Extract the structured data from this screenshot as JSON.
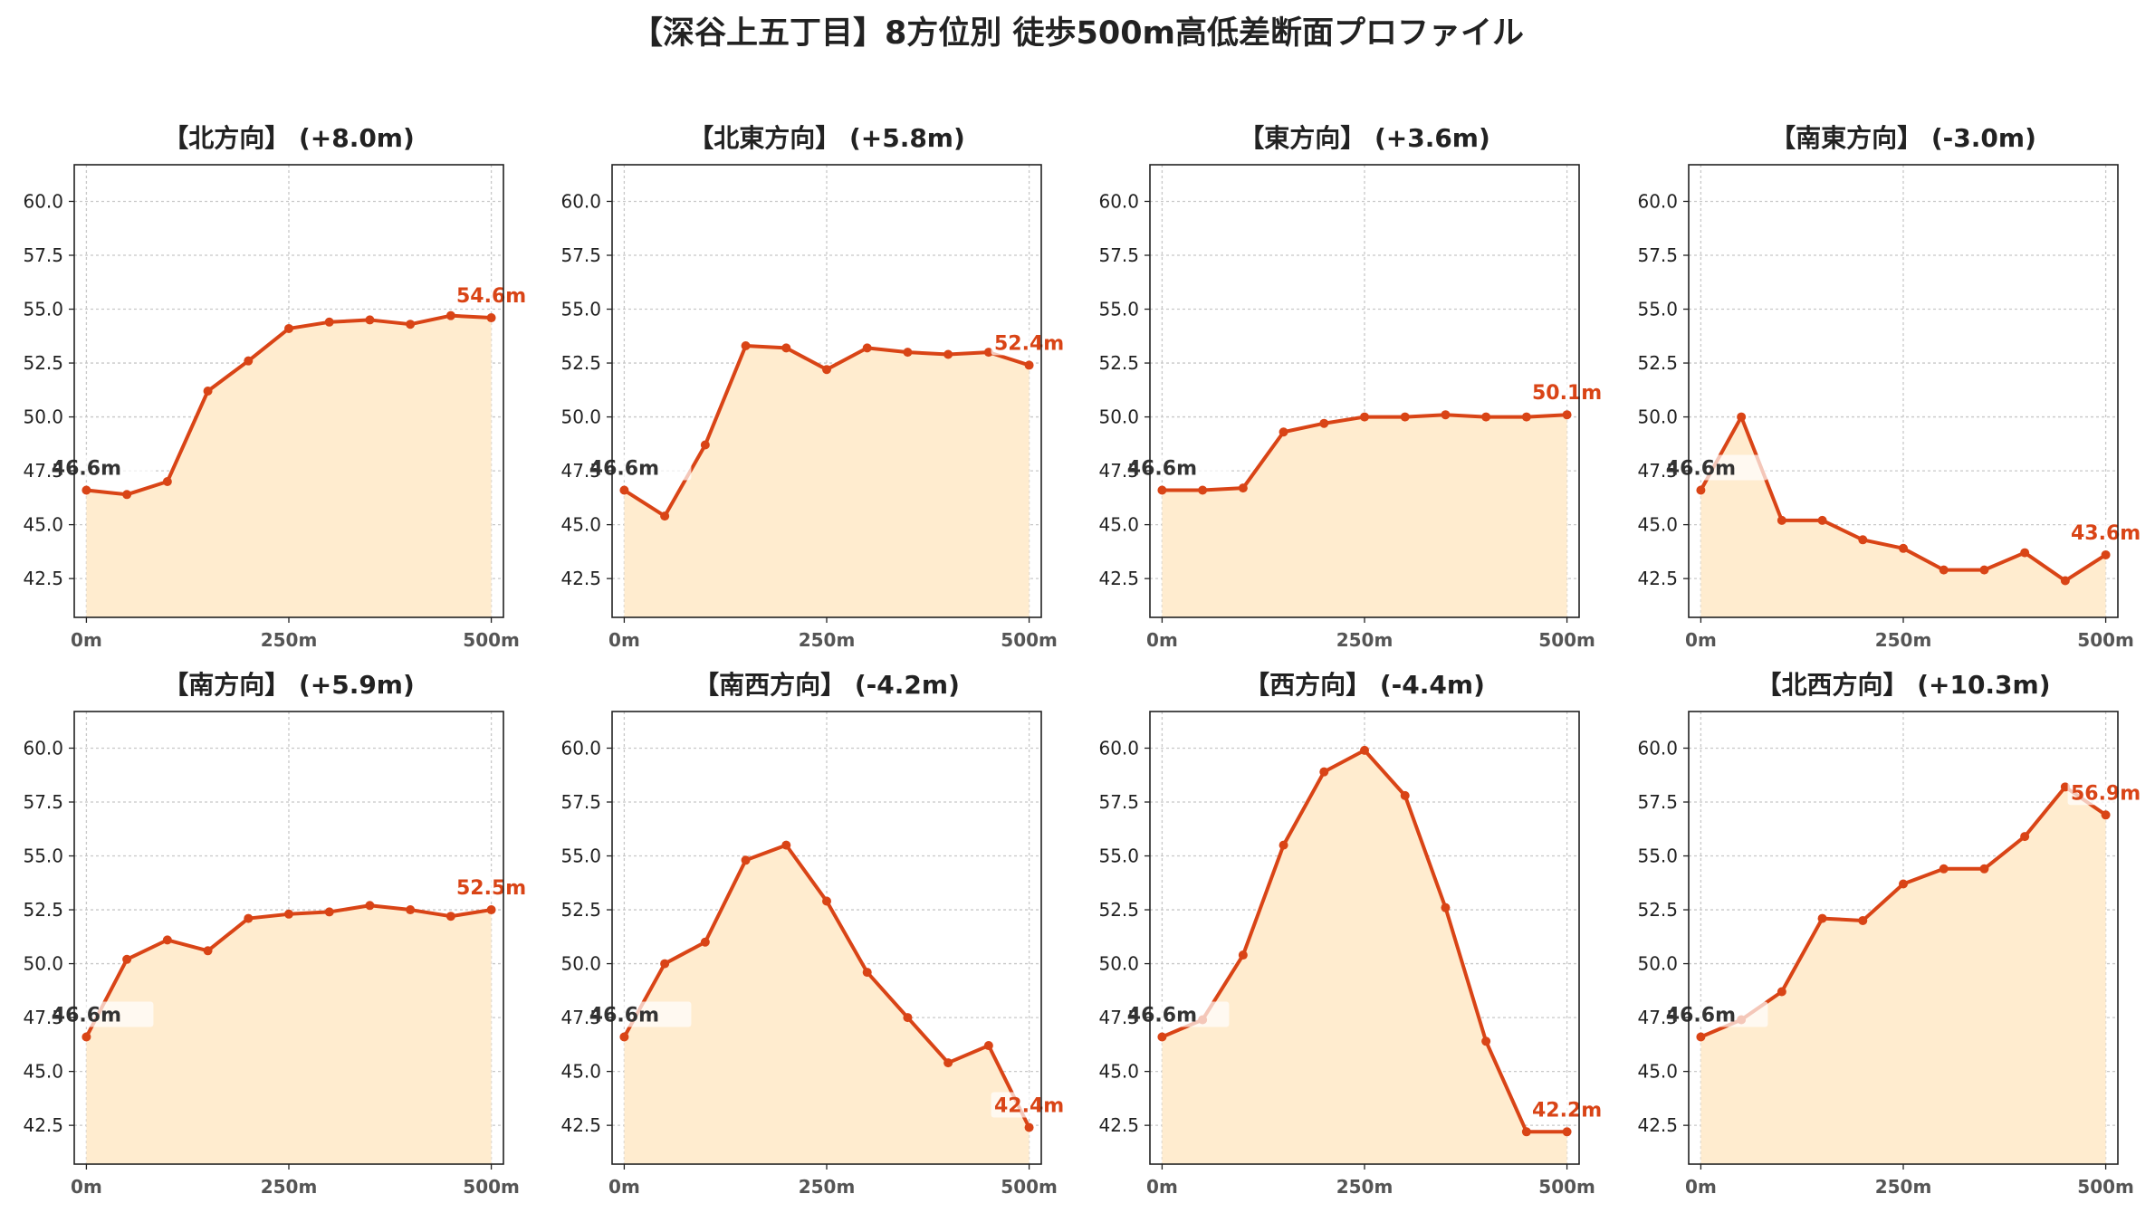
{
  "title": "【深谷上五丁目】8方位別 徒歩500m高低差断面プロファイル",
  "colors": {
    "line": "#d94416",
    "fill": "#ffeccf",
    "grid": "#c8c8c8",
    "start_label": "#333333",
    "end_label": "#d94416"
  },
  "chart_data": [
    {
      "type": "area",
      "title": "【北方向】 (+8.0m)",
      "x": [
        0,
        50,
        100,
        150,
        200,
        250,
        300,
        350,
        400,
        450,
        500
      ],
      "values": [
        46.6,
        46.4,
        47.0,
        51.2,
        52.6,
        54.1,
        54.4,
        54.5,
        54.3,
        54.7,
        54.6
      ],
      "start_label": "46.6m",
      "end_label": "54.6m",
      "xticks": [
        "0m",
        "250m",
        "500m"
      ],
      "yticks": [
        "42.5",
        "45.0",
        "47.5",
        "50.0",
        "52.5",
        "55.0",
        "57.5",
        "60.0"
      ],
      "xlim": [
        -15,
        515
      ],
      "ylim": [
        40.7,
        61.7
      ],
      "grid": true
    },
    {
      "type": "area",
      "title": "【北東方向】 (+5.8m)",
      "x": [
        0,
        50,
        100,
        150,
        200,
        250,
        300,
        350,
        400,
        450,
        500
      ],
      "values": [
        46.6,
        45.4,
        48.7,
        53.3,
        53.2,
        52.2,
        53.2,
        53.0,
        52.9,
        53.0,
        52.4
      ],
      "start_label": "46.6m",
      "end_label": "52.4m",
      "xticks": [
        "0m",
        "250m",
        "500m"
      ],
      "yticks": [
        "42.5",
        "45.0",
        "47.5",
        "50.0",
        "52.5",
        "55.0",
        "57.5",
        "60.0"
      ],
      "xlim": [
        -15,
        515
      ],
      "ylim": [
        40.7,
        61.7
      ],
      "grid": true
    },
    {
      "type": "area",
      "title": "【東方向】 (+3.6m)",
      "x": [
        0,
        50,
        100,
        150,
        200,
        250,
        300,
        350,
        400,
        450,
        500
      ],
      "values": [
        46.6,
        46.6,
        46.7,
        49.3,
        49.7,
        50.0,
        50.0,
        50.1,
        50.0,
        50.0,
        50.1
      ],
      "start_label": "46.6m",
      "end_label": "50.1m",
      "xticks": [
        "0m",
        "250m",
        "500m"
      ],
      "yticks": [
        "42.5",
        "45.0",
        "47.5",
        "50.0",
        "52.5",
        "55.0",
        "57.5",
        "60.0"
      ],
      "xlim": [
        -15,
        515
      ],
      "ylim": [
        40.7,
        61.7
      ],
      "grid": true
    },
    {
      "type": "area",
      "title": "【南東方向】 (-3.0m)",
      "x": [
        0,
        50,
        100,
        150,
        200,
        250,
        300,
        350,
        400,
        450,
        500
      ],
      "values": [
        46.6,
        50.0,
        45.2,
        45.2,
        44.3,
        43.9,
        42.9,
        42.9,
        43.7,
        42.4,
        43.6
      ],
      "start_label": "46.6m",
      "end_label": "43.6m",
      "xticks": [
        "0m",
        "250m",
        "500m"
      ],
      "yticks": [
        "42.5",
        "45.0",
        "47.5",
        "50.0",
        "52.5",
        "55.0",
        "57.5",
        "60.0"
      ],
      "xlim": [
        -15,
        515
      ],
      "ylim": [
        40.7,
        61.7
      ],
      "grid": true
    },
    {
      "type": "area",
      "title": "【南方向】 (+5.9m)",
      "x": [
        0,
        50,
        100,
        150,
        200,
        250,
        300,
        350,
        400,
        450,
        500
      ],
      "values": [
        46.6,
        50.2,
        51.1,
        50.6,
        52.1,
        52.3,
        52.4,
        52.7,
        52.5,
        52.2,
        52.5
      ],
      "start_label": "46.6m",
      "end_label": "52.5m",
      "xticks": [
        "0m",
        "250m",
        "500m"
      ],
      "yticks": [
        "42.5",
        "45.0",
        "47.5",
        "50.0",
        "52.5",
        "55.0",
        "57.5",
        "60.0"
      ],
      "xlim": [
        -15,
        515
      ],
      "ylim": [
        40.7,
        61.7
      ],
      "grid": true
    },
    {
      "type": "area",
      "title": "【南西方向】 (-4.2m)",
      "x": [
        0,
        50,
        100,
        150,
        200,
        250,
        300,
        350,
        400,
        450,
        500
      ],
      "values": [
        46.6,
        50.0,
        51.0,
        54.8,
        55.5,
        52.9,
        49.6,
        47.5,
        45.4,
        46.2,
        42.4
      ],
      "start_label": "46.6m",
      "end_label": "42.4m",
      "xticks": [
        "0m",
        "250m",
        "500m"
      ],
      "yticks": [
        "42.5",
        "45.0",
        "47.5",
        "50.0",
        "52.5",
        "55.0",
        "57.5",
        "60.0"
      ],
      "xlim": [
        -15,
        515
      ],
      "ylim": [
        40.7,
        61.7
      ],
      "grid": true
    },
    {
      "type": "area",
      "title": "【西方向】 (-4.4m)",
      "x": [
        0,
        50,
        100,
        150,
        200,
        250,
        300,
        350,
        400,
        450,
        500
      ],
      "values": [
        46.6,
        47.4,
        50.4,
        55.5,
        58.9,
        59.9,
        57.8,
        52.6,
        46.4,
        42.2,
        42.2
      ],
      "start_label": "46.6m",
      "end_label": "42.2m",
      "xticks": [
        "0m",
        "250m",
        "500m"
      ],
      "yticks": [
        "42.5",
        "45.0",
        "47.5",
        "50.0",
        "52.5",
        "55.0",
        "57.5",
        "60.0"
      ],
      "xlim": [
        -15,
        515
      ],
      "ylim": [
        40.7,
        61.7
      ],
      "grid": true
    },
    {
      "type": "area",
      "title": "【北西方向】 (+10.3m)",
      "x": [
        0,
        50,
        100,
        150,
        200,
        250,
        300,
        350,
        400,
        450,
        500
      ],
      "values": [
        46.6,
        47.4,
        48.7,
        52.1,
        52.0,
        53.7,
        54.4,
        54.4,
        55.9,
        58.2,
        56.9
      ],
      "start_label": "46.6m",
      "end_label": "56.9m",
      "xticks": [
        "0m",
        "250m",
        "500m"
      ],
      "yticks": [
        "42.5",
        "45.0",
        "47.5",
        "50.0",
        "52.5",
        "55.0",
        "57.5",
        "60.0"
      ],
      "xlim": [
        -15,
        515
      ],
      "ylim": [
        40.7,
        61.7
      ],
      "grid": true
    }
  ]
}
